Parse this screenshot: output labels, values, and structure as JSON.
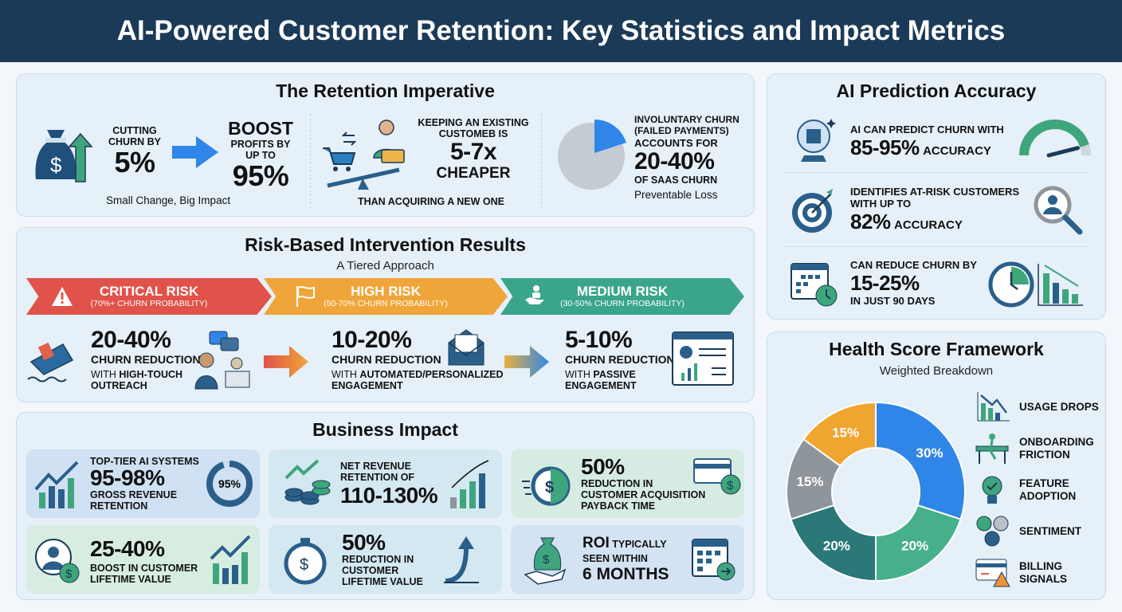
{
  "title": "AI-Powered Customer Retention: Key Statistics and Impact Metrics",
  "retention": {
    "title": "The Retention Imperative",
    "churn": {
      "line1": "CUTTING",
      "line2": "CHURN BY",
      "value": "5%",
      "boost": "BOOST",
      "profits": "PROFITS BY",
      "upto": "UP TO",
      "profit_value": "95%",
      "caption": "Small Change, Big Impact"
    },
    "cheaper": {
      "line1": "KEEPING AN EXISTING",
      "line2": "CUSTOMEB IS",
      "value": "5-7x",
      "value2": "CHEAPER",
      "caption": "THAN ACQUIRING A NEW ONE"
    },
    "involuntary": {
      "line1": "INVOLUNTARY CHURN",
      "line2": "(FAILED PAYMENTS)",
      "line3": "ACCOUNTS FOR",
      "value": "20-40%",
      "line4": "OF SaaS CHURN",
      "caption": "Preventable Loss",
      "slice_fraction": 0.2
    }
  },
  "risk": {
    "title": "Risk-Based Intervention Results",
    "subtitle": "A Tiered Approach",
    "tiers": [
      {
        "name": "CRITICAL RISK",
        "prob": "(70%+ CHURN PROBABILITY)",
        "value": "20-40%",
        "label": "CHURN REDUCTION",
        "with": "WITH ",
        "method": "HIGH-TOUCH",
        "method2": "OUTREACH",
        "color": "#e0524a"
      },
      {
        "name": "HIGH RISK",
        "prob": "(50-70% CHURN PROBABILITY)",
        "value": "10-20%",
        "label": "CHURN REDUCTION",
        "with": "WITH ",
        "method": "AUTOMATED/PERSONALIZED",
        "method2": "ENGAGEMENT",
        "color": "#f0a53a"
      },
      {
        "name": "MEDIUM RISK",
        "prob": "(30-50% CHURN PROBABILITY)",
        "value": "5-10%",
        "label": "CHURN REDUCTION",
        "with": "WITH ",
        "method": "PASSIVE",
        "method2": "ENGAGEMENT",
        "color": "#3aa58a"
      }
    ]
  },
  "business": {
    "title": "Business Impact",
    "cards": [
      {
        "pre": "TOP-TIER AI SYSTEMS",
        "value": "95-98%",
        "l1": "GROSS REVENUE",
        "l2": "RETENTION",
        "ring": "95%"
      },
      {
        "pre": "NET REVENUE",
        "pre2": "RETENTION OF",
        "value": "110-130%"
      },
      {
        "value": "50%",
        "l1": "REDUCTION IN",
        "l2": "CUSTOMER ACQUISITION",
        "l3": "PAYBACK TIME"
      },
      {
        "value": "25-40%",
        "l1": "BOOST IN CUSTOMER",
        "l2": "LIFETIME VALUE"
      },
      {
        "value": "50%",
        "l1": "REDUCTION IN",
        "l2": "CUSTOMER",
        "l3": "LIFETIME VALUE"
      },
      {
        "roi": "ROI",
        "l1": "TYPICALLY",
        "l2": "SEEN WITHIN",
        "value": "6 MONTHS"
      }
    ]
  },
  "accuracy": {
    "title": "AI Prediction Accuracy",
    "items": [
      {
        "l1": "AI CAN PREDICT CHURN WITH",
        "value": "85-95%",
        "suffix": "ACCURACY",
        "gauge_level": 0.9
      },
      {
        "l1": "IDENTIFIES AT-RISK CUSTOMERS",
        "l2": "WITH UP TO",
        "value": "82%",
        "suffix": "ACCURACY"
      },
      {
        "l1": "CAN REDUCE CHURN BY",
        "value": "15-25%",
        "l2": "IN JUST 90 DAYS"
      }
    ]
  },
  "health": {
    "title": "Health Score Framework",
    "subtitle": "Weighted Breakdown",
    "legend": [
      "USAGE DROPS",
      "ONBOARDING FRICTION",
      "FEATURE ADOPTION",
      "SENTIMENT",
      "BILLING SIGNALS"
    ]
  },
  "chart_data": {
    "type": "pie",
    "title": "Health Score Framework",
    "subtitle": "Weighted Breakdown",
    "donut": true,
    "values": [
      30,
      20,
      20,
      15,
      15
    ],
    "labels": [
      "30%",
      "20%",
      "20%",
      "15%",
      "15%"
    ],
    "colors": [
      "#2f86e8",
      "#46b08a",
      "#2a7878",
      "#8e959b",
      "#f0a530"
    ]
  }
}
